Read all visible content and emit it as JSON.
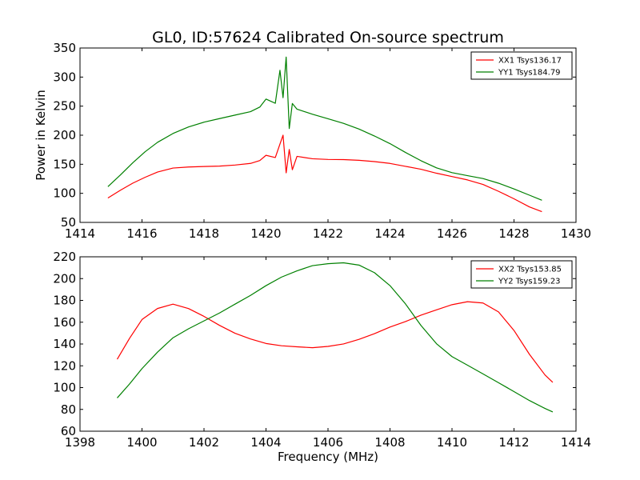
{
  "figure": {
    "title": "GL0, ID:57624 Calibrated On-source spectrum"
  },
  "chart_data": [
    {
      "type": "line",
      "title": "GL0, ID:57624 Calibrated On-source spectrum",
      "xlabel": "",
      "ylabel": "Power in Kelvin",
      "xlim": [
        1414,
        1430
      ],
      "ylim": [
        50,
        350
      ],
      "xticks": [
        "1414",
        "1416",
        "1418",
        "1420",
        "1422",
        "1424",
        "1426",
        "1428",
        "1430"
      ],
      "yticks": [
        "50",
        "100",
        "150",
        "200",
        "250",
        "300",
        "350"
      ],
      "legend_position": "top-right",
      "grid": false,
      "series": [
        {
          "name": "XX1 Tsys136.17",
          "color": "#ff0000",
          "x": [
            1414.9,
            1415.3,
            1415.7,
            1416.1,
            1416.5,
            1417.0,
            1417.5,
            1418.0,
            1418.5,
            1419.0,
            1419.5,
            1419.8,
            1420.0,
            1420.3,
            1420.45,
            1420.55,
            1420.65,
            1420.75,
            1420.85,
            1421.0,
            1421.5,
            1422.0,
            1422.5,
            1423.0,
            1423.5,
            1424.0,
            1424.5,
            1425.0,
            1425.5,
            1426.0,
            1426.5,
            1427.0,
            1427.5,
            1428.0,
            1428.5,
            1428.9
          ],
          "y": [
            92,
            105,
            117,
            127,
            136,
            143,
            145,
            146,
            147,
            149,
            152,
            157,
            166,
            162,
            185,
            200,
            135,
            175,
            140,
            163,
            159,
            158,
            158,
            157,
            155,
            152,
            147,
            142,
            135,
            129,
            123,
            115,
            103,
            90,
            76,
            68
          ]
        },
        {
          "name": "YY1 Tsys184.79",
          "color": "#008000",
          "x": [
            1414.9,
            1415.3,
            1415.7,
            1416.1,
            1416.5,
            1417.0,
            1417.5,
            1418.0,
            1418.5,
            1419.0,
            1419.5,
            1419.8,
            1420.0,
            1420.3,
            1420.45,
            1420.55,
            1420.65,
            1420.75,
            1420.85,
            1421.0,
            1421.5,
            1422.0,
            1422.5,
            1423.0,
            1423.5,
            1424.0,
            1424.5,
            1425.0,
            1425.5,
            1426.0,
            1426.5,
            1427.0,
            1427.5,
            1428.0,
            1428.5,
            1428.9
          ],
          "y": [
            112,
            132,
            153,
            172,
            188,
            203,
            214,
            222,
            228,
            234,
            240,
            248,
            262,
            255,
            312,
            265,
            335,
            212,
            255,
            245,
            236,
            228,
            220,
            210,
            198,
            185,
            170,
            156,
            144,
            136,
            131,
            126,
            118,
            108,
            97,
            88
          ]
        }
      ]
    },
    {
      "type": "line",
      "title": "",
      "xlabel": "Frequency (MHz)",
      "ylabel": "",
      "xlim": [
        1398,
        1414
      ],
      "ylim": [
        60,
        220
      ],
      "xticks": [
        "1398",
        "1400",
        "1402",
        "1404",
        "1406",
        "1408",
        "1410",
        "1412",
        "1414"
      ],
      "yticks": [
        "60",
        "80",
        "100",
        "120",
        "140",
        "160",
        "180",
        "200",
        "220"
      ],
      "legend_position": "top-right",
      "grid": false,
      "series": [
        {
          "name": "XX2 Tsys153.85",
          "color": "#ff0000",
          "x": [
            1399.2,
            1399.6,
            1400.0,
            1400.5,
            1401.0,
            1401.5,
            1402.0,
            1402.5,
            1403.0,
            1403.5,
            1404.0,
            1404.5,
            1405.0,
            1405.5,
            1406.0,
            1406.5,
            1407.0,
            1407.5,
            1408.0,
            1408.5,
            1409.0,
            1409.5,
            1410.0,
            1410.5,
            1411.0,
            1411.5,
            1412.0,
            1412.5,
            1413.0,
            1413.25
          ],
          "y": [
            126,
            145,
            162,
            172,
            176,
            172,
            165,
            157,
            150,
            145,
            141,
            139,
            138,
            137,
            138,
            140,
            144,
            149,
            155,
            160,
            166,
            171,
            176,
            179,
            178,
            170,
            153,
            131,
            112,
            105
          ]
        },
        {
          "name": "YY2 Tsys159.23",
          "color": "#008000",
          "x": [
            1399.2,
            1399.6,
            1400.0,
            1400.5,
            1401.0,
            1401.5,
            1402.0,
            1402.5,
            1403.0,
            1403.5,
            1404.0,
            1404.5,
            1405.0,
            1405.5,
            1406.0,
            1406.5,
            1407.0,
            1407.5,
            1408.0,
            1408.5,
            1409.0,
            1409.5,
            1410.0,
            1410.5,
            1411.0,
            1411.5,
            1412.0,
            1412.5,
            1413.0,
            1413.25
          ],
          "y": [
            91,
            104,
            118,
            133,
            146,
            154,
            161,
            168,
            176,
            184,
            193,
            201,
            207,
            212,
            214,
            215,
            213,
            206,
            194,
            177,
            157,
            140,
            128,
            120,
            112,
            104,
            96,
            88,
            81,
            78
          ]
        }
      ]
    }
  ]
}
